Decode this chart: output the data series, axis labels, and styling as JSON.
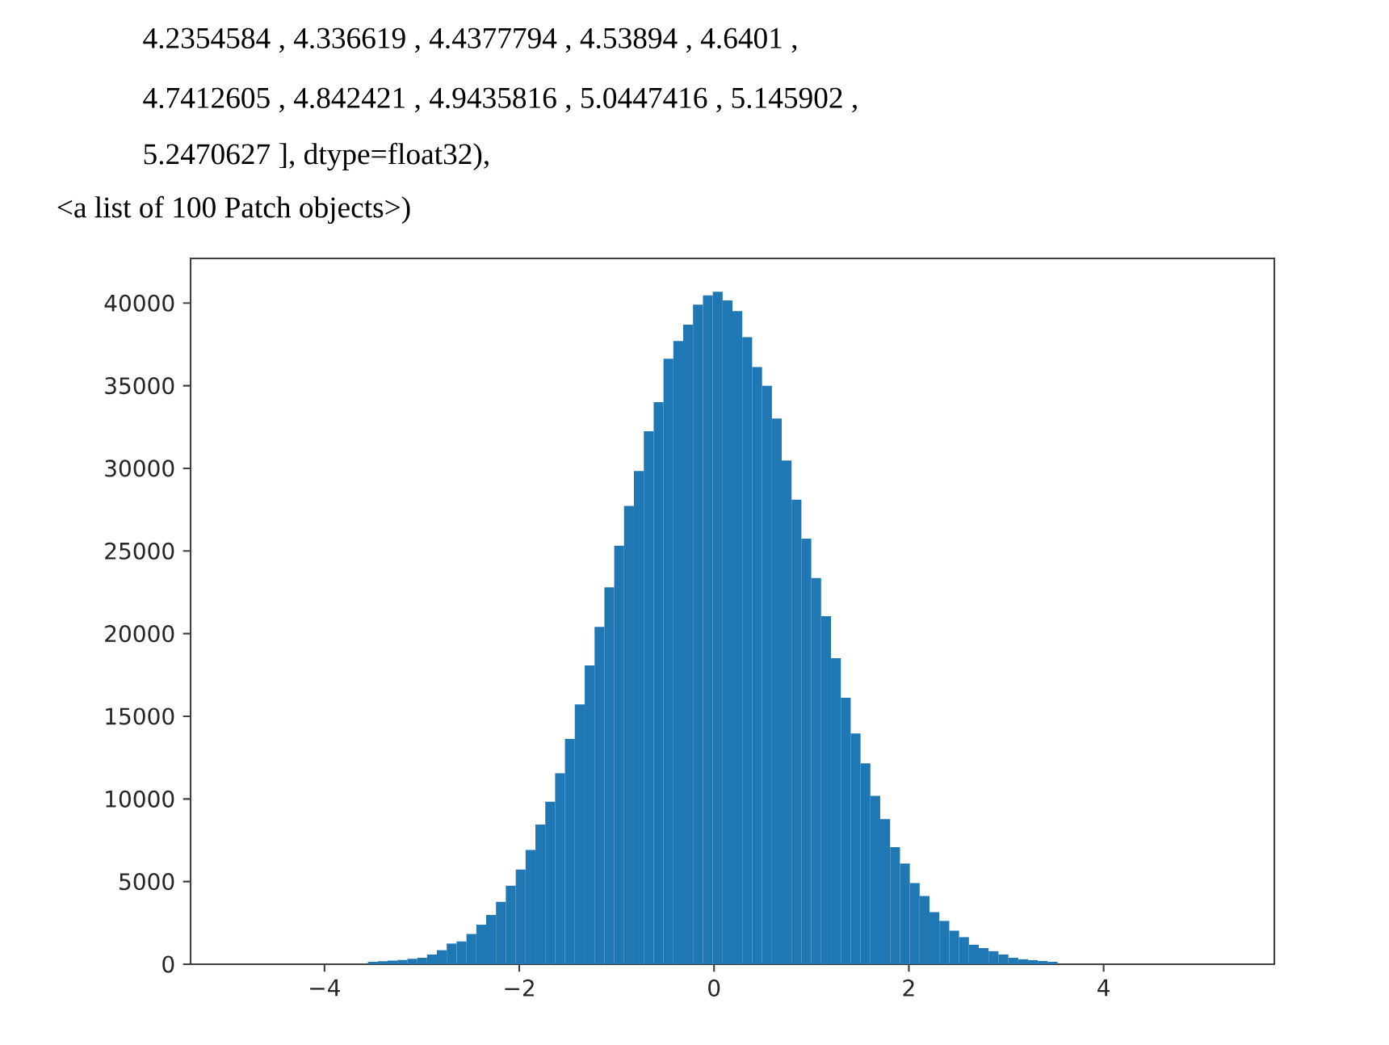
{
  "chart_data": {
    "type": "histogram",
    "annotations": [
      "4.2354584 ,  4.336619  ,  4.4377794 ,  4.53894   ,  4.6401    ,",
      "4.7412605 ,  4.842421  ,  4.9435816 ,  5.0447416 ,  5.145902  ,",
      "5.2470627 ], dtype=float32),",
      "<a list of 100 Patch objects>)"
    ],
    "bins": [
      -4.869,
      -4.768,
      -4.667,
      -4.566,
      -4.464,
      -4.363,
      -4.262,
      -4.161,
      -4.06,
      -3.959,
      -3.857,
      -3.756,
      -3.655,
      -3.554,
      -3.453,
      -3.352,
      -3.25,
      -3.149,
      -3.048,
      -2.947,
      -2.846,
      -2.745,
      -2.643,
      -2.542,
      -2.441,
      -2.34,
      -2.239,
      -2.138,
      -2.036,
      -1.935,
      -1.834,
      -1.733,
      -1.632,
      -1.531,
      -1.43,
      -1.328,
      -1.227,
      -1.126,
      -1.025,
      -0.924,
      -0.823,
      -0.721,
      -0.62,
      -0.519,
      -0.418,
      -0.317,
      -0.216,
      -0.114,
      -0.013,
      0.088,
      0.189,
      0.29,
      0.391,
      0.493,
      0.594,
      0.695,
      0.796,
      0.897,
      0.998,
      1.099,
      1.201,
      1.302,
      1.403,
      1.504,
      1.605,
      1.706,
      1.808,
      1.909,
      2.01,
      2.111,
      2.212,
      2.313,
      2.415,
      2.516,
      2.617,
      2.718,
      2.819,
      2.92,
      3.022,
      3.123,
      3.224,
      3.325,
      3.426,
      3.527,
      3.628,
      3.73,
      3.831,
      3.932,
      4.033,
      4.134,
      4.235,
      4.336,
      4.438,
      4.539,
      4.64,
      4.741,
      4.842,
      4.944,
      5.045,
      5.146,
      5.247
    ],
    "values": [
      0,
      0,
      0,
      0,
      0,
      0,
      0,
      0,
      0,
      0,
      0,
      0,
      0,
      150,
      180,
      220,
      260,
      330,
      390,
      590,
      850,
      1250,
      1380,
      1830,
      2390,
      2980,
      3770,
      4750,
      5730,
      6910,
      8450,
      9830,
      11560,
      13630,
      15720,
      18080,
      20410,
      22800,
      25320,
      27720,
      29840,
      32240,
      34000,
      36630,
      37710,
      38690,
      39900,
      40460,
      40690,
      40160,
      39510,
      37940,
      36130,
      34990,
      33020,
      30470,
      28110,
      25750,
      23360,
      21060,
      18510,
      16120,
      13960,
      12150,
      10190,
      8780,
      7080,
      6090,
      4910,
      4130,
      3150,
      2620,
      2030,
      1640,
      1180,
      980,
      790,
      590,
      390,
      300,
      250,
      200,
      150,
      0,
      0,
      0,
      0,
      0,
      0,
      0,
      0,
      0,
      0,
      0,
      0,
      0,
      0,
      0,
      0,
      0
    ],
    "color": "#1f77b4",
    "xlim": [
      -5.375,
      5.753
    ],
    "ylim": [
      0,
      42700
    ],
    "xticks": [
      {
        "value": -4,
        "label": "−4"
      },
      {
        "value": -2,
        "label": "−2"
      },
      0,
      2,
      4
    ],
    "yticks": [
      0,
      5000,
      10000,
      15000,
      20000,
      25000,
      30000,
      35000,
      40000
    ]
  }
}
